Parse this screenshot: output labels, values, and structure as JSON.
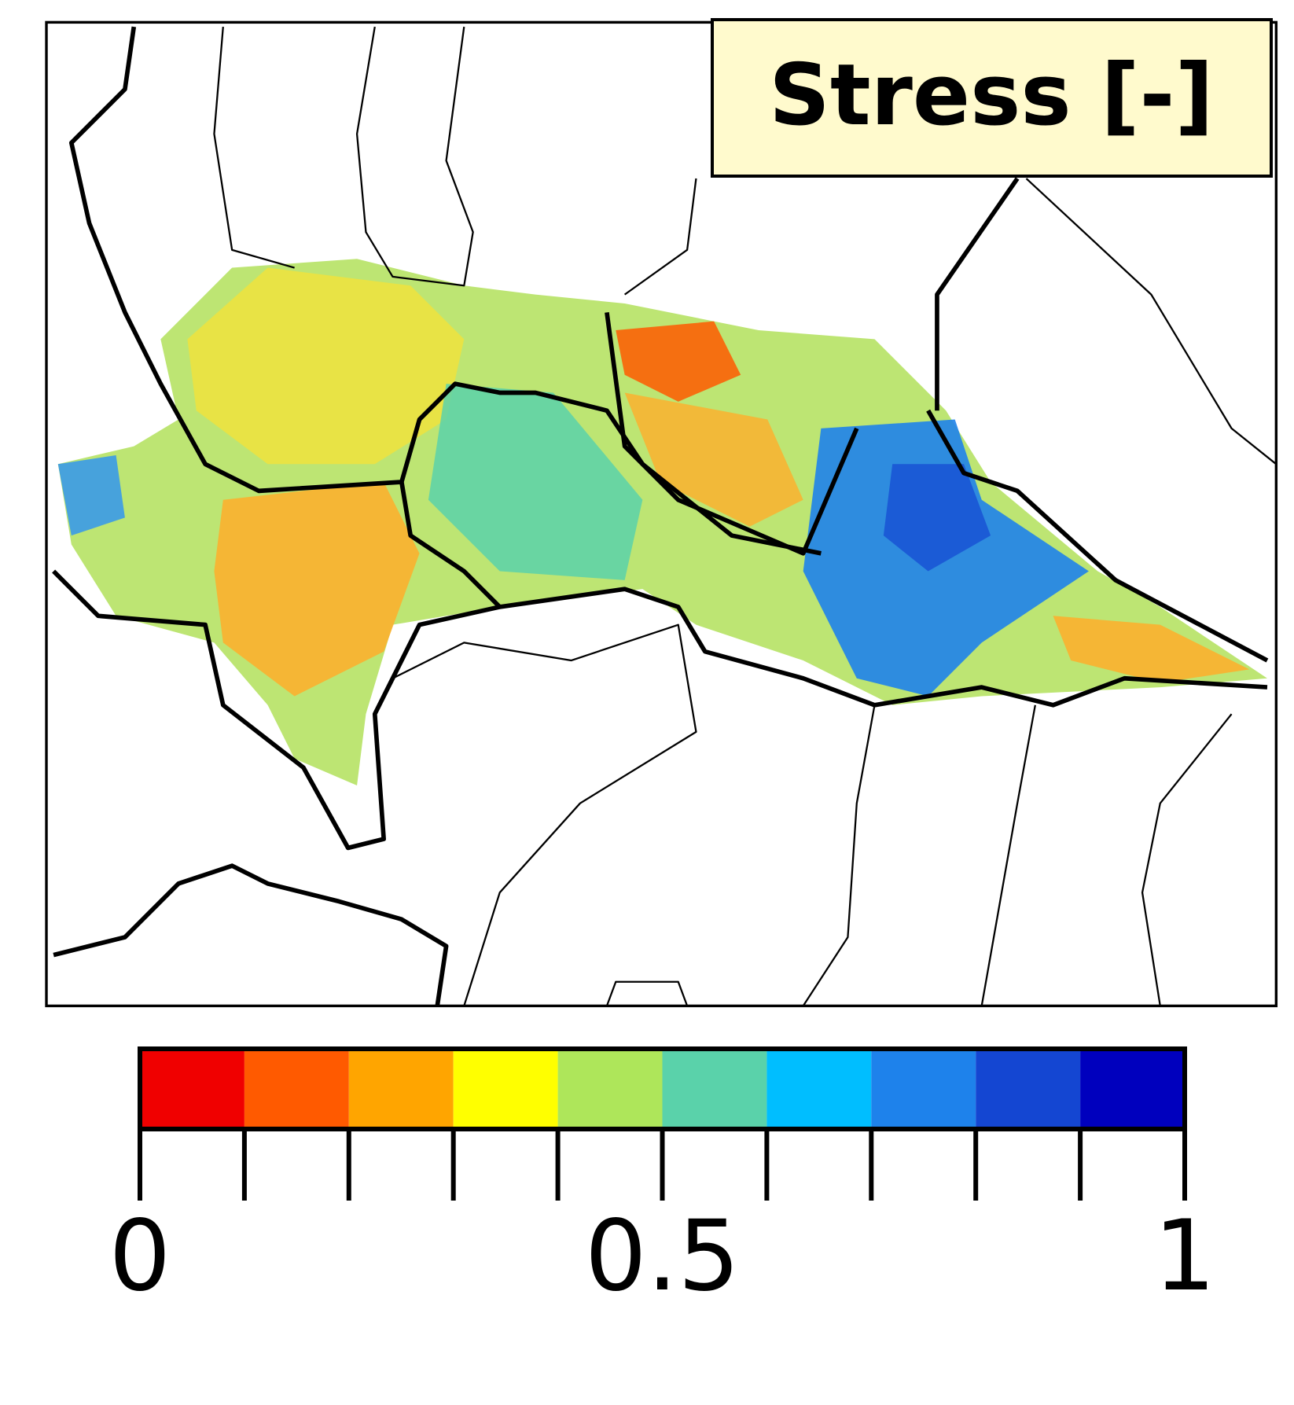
{
  "title": "Stress [-]",
  "colorbar": {
    "range": [
      0,
      1
    ],
    "ticks": [
      0,
      0.1,
      0.2,
      0.3,
      0.4,
      0.5,
      0.6,
      0.7,
      0.8,
      0.9,
      1
    ],
    "tick_labels": [
      0,
      0.5,
      1
    ],
    "colors": [
      "#f00000",
      "#ff5a00",
      "#ffa500",
      "#ffff00",
      "#aee65a",
      "#5ad2aa",
      "#00beff",
      "#1e82eb",
      "#1446d2",
      "#0000be"
    ]
  }
}
